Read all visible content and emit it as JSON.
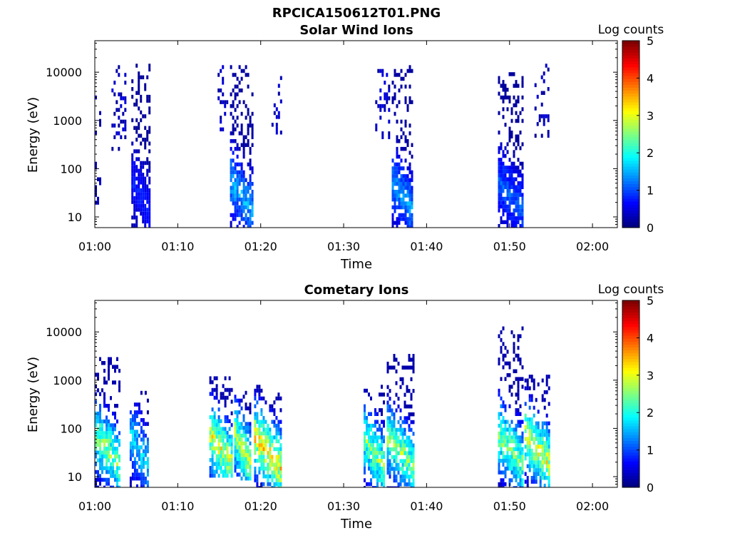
{
  "figure_title": "RPCICA150612T01.PNG",
  "chart_data": [
    {
      "type": "heatmap",
      "title": "Solar Wind Ions",
      "xlabel": "Time",
      "ylabel": "Energy (eV)",
      "x_ticks": [
        "01:00",
        "01:10",
        "01:20",
        "01:30",
        "01:40",
        "01:50",
        "02:00"
      ],
      "x_range_minutes": [
        0,
        63
      ],
      "y_scale": "log",
      "y_ticks": [
        "10",
        "100",
        "1000",
        "10000"
      ],
      "ylim": [
        6,
        45000
      ],
      "colorbar_label": "Log counts",
      "colorbar_ticks": [
        "0",
        "1",
        "2",
        "3",
        "4",
        "5"
      ],
      "colorbar_range": [
        0,
        5
      ],
      "colormap": "jet",
      "bursts": [
        {
          "t_start_min": 0.0,
          "t_end_min": 0.8,
          "e_min_ev": 20,
          "e_max_ev": 10000,
          "peak_log_counts": 0.4,
          "sparse": true
        },
        {
          "t_start_min": 2.0,
          "t_end_min": 3.8,
          "e_min_ev": 250,
          "e_max_ev": 14000,
          "peak_log_counts": 0.4,
          "sparse": true
        },
        {
          "t_start_min": 4.4,
          "t_end_min": 6.6,
          "e_min_ev": 6,
          "e_max_ev": 15000,
          "peak_log_counts": 0.8,
          "sparse": false
        },
        {
          "t_start_min": 14.8,
          "t_end_min": 16.2,
          "e_min_ev": 600,
          "e_max_ev": 14000,
          "peak_log_counts": 0.4,
          "sparse": true
        },
        {
          "t_start_min": 16.3,
          "t_end_min": 19.2,
          "e_min_ev": 6,
          "e_max_ev": 14000,
          "peak_log_counts": 1.7,
          "sparse": false
        },
        {
          "t_start_min": 21.3,
          "t_end_min": 22.6,
          "e_min_ev": 500,
          "e_max_ev": 10000,
          "peak_log_counts": 0.4,
          "sparse": true
        },
        {
          "t_start_min": 33.8,
          "t_end_min": 35.6,
          "e_min_ev": 250,
          "e_max_ev": 14000,
          "peak_log_counts": 0.4,
          "sparse": true
        },
        {
          "t_start_min": 35.8,
          "t_end_min": 38.4,
          "e_min_ev": 6,
          "e_max_ev": 14000,
          "peak_log_counts": 1.6,
          "sparse": false
        },
        {
          "t_start_min": 48.6,
          "t_end_min": 51.8,
          "e_min_ev": 6,
          "e_max_ev": 10000,
          "peak_log_counts": 1.2,
          "sparse": false
        },
        {
          "t_start_min": 53.0,
          "t_end_min": 54.9,
          "e_min_ev": 450,
          "e_max_ev": 15000,
          "peak_log_counts": 0.4,
          "sparse": true
        }
      ]
    },
    {
      "type": "heatmap",
      "title": "Cometary Ions",
      "xlabel": "Time",
      "ylabel": "Energy (eV)",
      "x_ticks": [
        "01:00",
        "01:10",
        "01:20",
        "01:30",
        "01:40",
        "01:50",
        "02:00"
      ],
      "x_range_minutes": [
        0,
        63
      ],
      "y_scale": "log",
      "y_ticks": [
        "10",
        "100",
        "1000",
        "10000"
      ],
      "ylim": [
        6,
        45000
      ],
      "colorbar_label": "Log counts",
      "colorbar_ticks": [
        "0",
        "1",
        "2",
        "3",
        "4",
        "5"
      ],
      "colorbar_range": [
        0,
        5
      ],
      "colormap": "jet",
      "bursts": [
        {
          "t_start_min": 0.0,
          "t_end_min": 3.2,
          "e_min_ev": 6,
          "e_max_ev": 3000,
          "peak_log_counts": 3.0,
          "core_ev": 40,
          "sparse": false
        },
        {
          "t_start_min": 4.2,
          "t_end_min": 6.4,
          "e_min_ev": 6,
          "e_max_ev": 600,
          "peak_log_counts": 2.0,
          "core_ev": 40,
          "sparse": false
        },
        {
          "t_start_min": 13.8,
          "t_end_min": 16.6,
          "e_min_ev": 10,
          "e_max_ev": 1200,
          "peak_log_counts": 3.5,
          "core_ev": 40,
          "sparse": false
        },
        {
          "t_start_min": 16.8,
          "t_end_min": 18.9,
          "e_min_ev": 10,
          "e_max_ev": 600,
          "peak_log_counts": 3.2,
          "core_ev": 40,
          "sparse": false
        },
        {
          "t_start_min": 19.2,
          "t_end_min": 22.6,
          "e_min_ev": 6,
          "e_max_ev": 800,
          "peak_log_counts": 3.8,
          "core_ev": 35,
          "sparse": false
        },
        {
          "t_start_min": 32.4,
          "t_end_min": 35.0,
          "e_min_ev": 6,
          "e_max_ev": 800,
          "peak_log_counts": 3.0,
          "core_ev": 35,
          "sparse": false
        },
        {
          "t_start_min": 35.2,
          "t_end_min": 38.6,
          "e_min_ev": 6,
          "e_max_ev": 3500,
          "peak_log_counts": 3.0,
          "core_ev": 35,
          "sparse": false
        },
        {
          "t_start_min": 48.6,
          "t_end_min": 51.6,
          "e_min_ev": 6,
          "e_max_ev": 13000,
          "peak_log_counts": 3.0,
          "core_ev": 40,
          "sparse": false
        },
        {
          "t_start_min": 51.8,
          "t_end_min": 54.9,
          "e_min_ev": 6,
          "e_max_ev": 1300,
          "peak_log_counts": 3.5,
          "core_ev": 40,
          "sparse": false
        }
      ]
    }
  ]
}
